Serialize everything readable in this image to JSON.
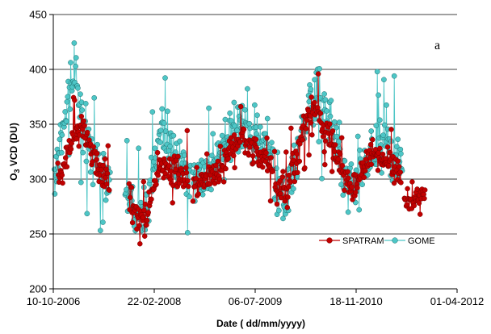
{
  "chart_data": {
    "type": "line",
    "panel_label": "a",
    "xlabel": "Date ( dd/mm/yyyy)",
    "ylabel_main": "O",
    "ylabel_sub": "3",
    "ylabel_rest": " VCD (DU)",
    "ylim": [
      200,
      450
    ],
    "yticks": [
      200,
      250,
      300,
      350,
      400,
      450
    ],
    "xlim": [
      "2006-10-10",
      "2012-04-01"
    ],
    "xticks": [
      "10-10-2006",
      "22-02-2008",
      "06-07-2009",
      "18-11-2010",
      "01-04-2012"
    ],
    "grid": "horizontal",
    "legend_position": "bottom-right",
    "series": [
      {
        "name": "SPATRAM",
        "color": "#c00000",
        "marker": "circle",
        "periods": [
          {
            "start": "2006-11-01",
            "end": "2007-07-15",
            "anchors": [
              [
                0,
                300
              ],
              [
                0.12,
                315
              ],
              [
                0.3,
                345
              ],
              [
                0.45,
                350
              ],
              [
                0.6,
                330
              ],
              [
                0.8,
                312
              ],
              [
                1,
                300
              ]
            ],
            "noise": 12
          },
          {
            "start": "2007-10-20",
            "end": "2008-08-10",
            "anchors": [
              [
                0,
                285
              ],
              [
                0.15,
                268
              ],
              [
                0.3,
                262
              ],
              [
                0.4,
                295
              ],
              [
                0.55,
                315
              ],
              [
                0.75,
                305
              ],
              [
                1,
                300
              ]
            ],
            "noise": 13
          },
          {
            "start": "2008-09-01",
            "end": "2009-09-30",
            "anchors": [
              [
                0,
                295
              ],
              [
                0.2,
                300
              ],
              [
                0.4,
                315
              ],
              [
                0.6,
                338
              ],
              [
                0.8,
                325
              ],
              [
                1,
                310
              ]
            ],
            "noise": 12
          },
          {
            "start": "2009-10-10",
            "end": "2010-09-20",
            "anchors": [
              [
                0,
                295
              ],
              [
                0.15,
                282
              ],
              [
                0.3,
                315
              ],
              [
                0.45,
                350
              ],
              [
                0.6,
                362
              ],
              [
                0.75,
                345
              ],
              [
                1,
                305
              ]
            ],
            "noise": 14
          },
          {
            "start": "2010-09-25",
            "end": "2011-06-30",
            "anchors": [
              [
                0,
                300
              ],
              [
                0.2,
                295
              ],
              [
                0.45,
                320
              ],
              [
                0.7,
                320
              ],
              [
                1,
                305
              ]
            ],
            "noise": 11
          },
          {
            "start": "2011-07-15",
            "end": "2011-10-25",
            "anchors": [
              [
                0,
                283
              ],
              [
                0.5,
                280
              ],
              [
                1,
                292
              ]
            ],
            "noise": 7
          }
        ]
      },
      {
        "name": "GOME",
        "color": "#4dc6c6",
        "marker": "circle",
        "periods": [
          {
            "start": "2006-10-15",
            "end": "2007-07-20",
            "anchors": [
              [
                0,
                295
              ],
              [
                0.12,
                335
              ],
              [
                0.25,
                370
              ],
              [
                0.35,
                385
              ],
              [
                0.5,
                360
              ],
              [
                0.7,
                320
              ],
              [
                1,
                300
              ]
            ],
            "noise": 22
          },
          {
            "start": "2007-10-01",
            "end": "2008-08-20",
            "anchors": [
              [
                0,
                290
              ],
              [
                0.15,
                272
              ],
              [
                0.3,
                270
              ],
              [
                0.4,
                300
              ],
              [
                0.55,
                340
              ],
              [
                0.75,
                320
              ],
              [
                1,
                300
              ]
            ],
            "noise": 22
          },
          {
            "start": "2008-09-01",
            "end": "2009-10-05",
            "anchors": [
              [
                0,
                300
              ],
              [
                0.2,
                305
              ],
              [
                0.4,
                330
              ],
              [
                0.6,
                355
              ],
              [
                0.8,
                340
              ],
              [
                1,
                310
              ]
            ],
            "noise": 22
          },
          {
            "start": "2009-10-10",
            "end": "2010-09-25",
            "anchors": [
              [
                0,
                300
              ],
              [
                0.15,
                282
              ],
              [
                0.3,
                320
              ],
              [
                0.45,
                365
              ],
              [
                0.6,
                375
              ],
              [
                0.75,
                360
              ],
              [
                1,
                305
              ]
            ],
            "noise": 22
          },
          {
            "start": "2010-09-25",
            "end": "2011-07-05",
            "anchors": [
              [
                0,
                300
              ],
              [
                0.2,
                292
              ],
              [
                0.45,
                330
              ],
              [
                0.7,
                335
              ],
              [
                1,
                308
              ]
            ],
            "noise": 22
          }
        ]
      }
    ]
  }
}
